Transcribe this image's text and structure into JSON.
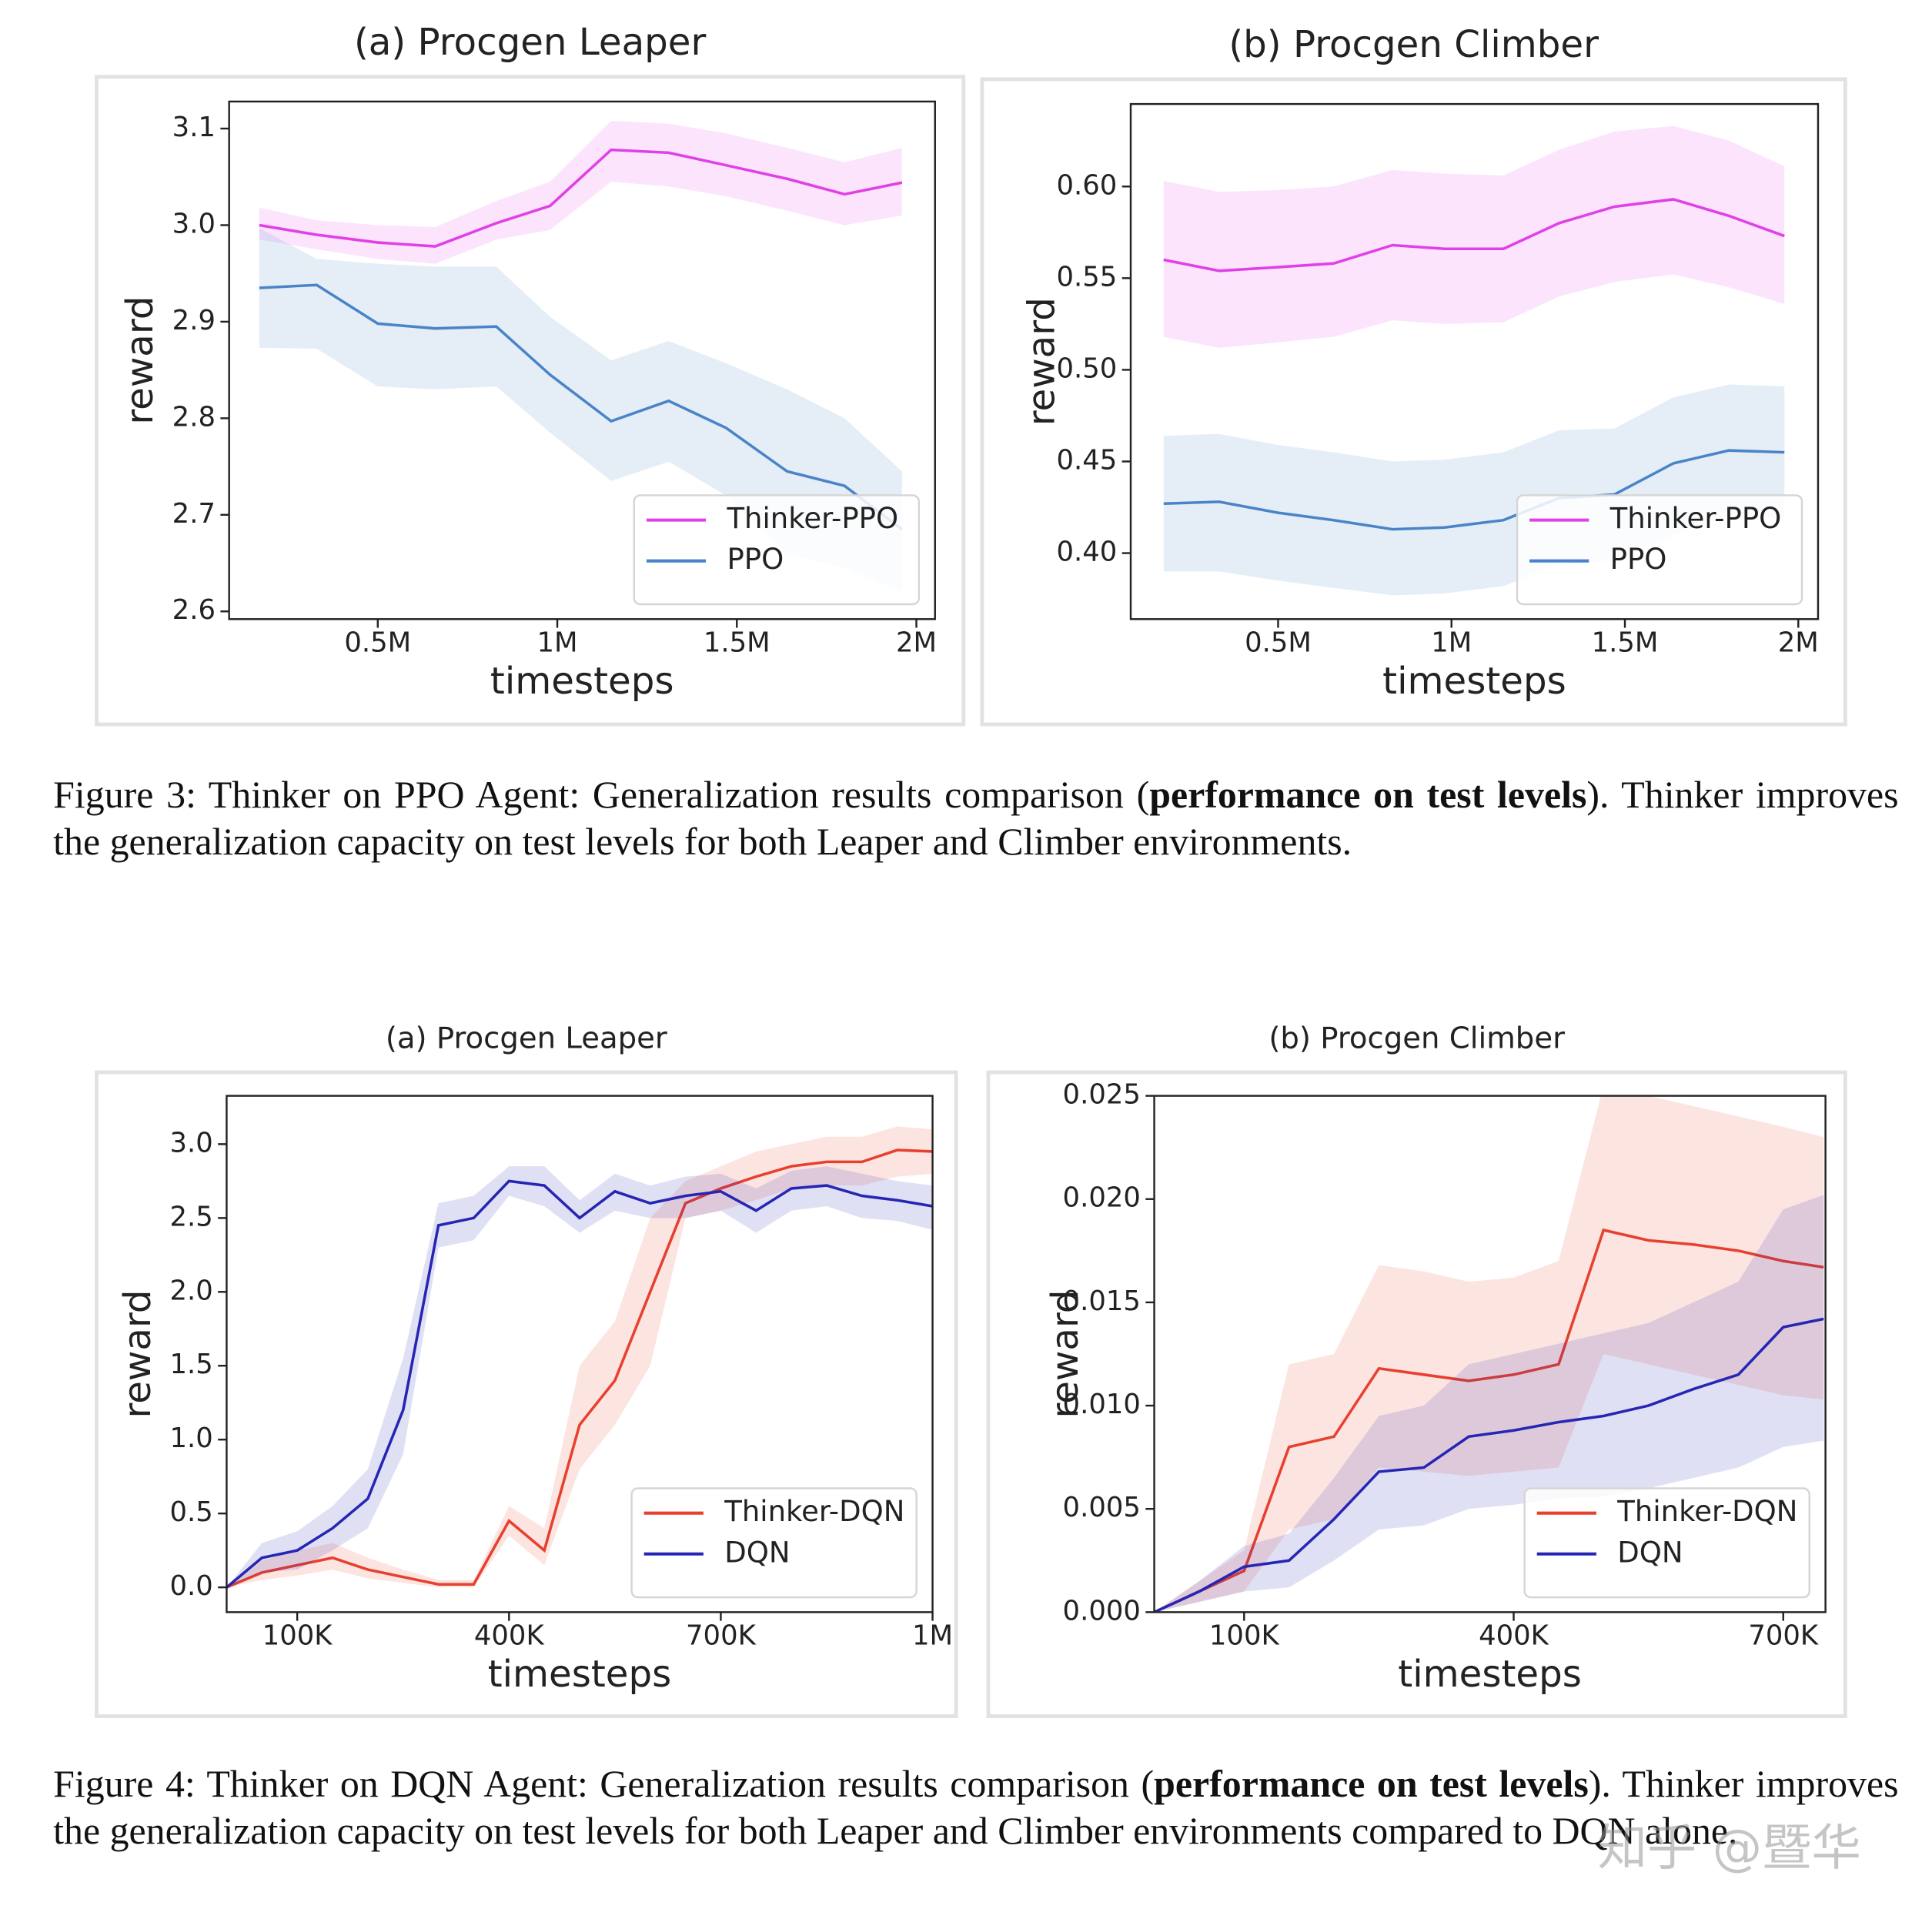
{
  "chart_data": [
    {
      "type": "line",
      "title": "(a) Procgen Leaper",
      "x_label": "timesteps",
      "y_label": "reward",
      "x": [
        170000,
        330000,
        500000,
        660000,
        830000,
        980000,
        1150000,
        1310000,
        1470000,
        1640000,
        1800000,
        1960000
      ],
      "xlim": [
        86000,
        2052000
      ],
      "xticks": [
        {
          "value": 500000,
          "label": "0.5M"
        },
        {
          "value": 1000000,
          "label": "1M"
        },
        {
          "value": 1500000,
          "label": "1.5M"
        },
        {
          "value": 2000000,
          "label": "2M"
        }
      ],
      "ylim": [
        2.592,
        3.128
      ],
      "yticks": [
        2.6,
        2.7,
        2.8,
        2.9,
        {
          "value": 3,
          "label": "3.0"
        },
        3.1
      ],
      "grid": false,
      "legend": "lower right",
      "series": [
        {
          "name": "Thinker-PPO",
          "color": "#e040e8",
          "values": [
            3.0,
            2.99,
            2.982,
            2.978,
            3.002,
            3.02,
            3.078,
            3.075,
            3.062,
            3.048,
            3.032,
            3.044
          ],
          "lower": [
            2.985,
            2.975,
            2.965,
            2.96,
            2.985,
            2.995,
            3.045,
            3.04,
            3.03,
            3.015,
            3.0,
            3.01
          ],
          "upper": [
            3.018,
            3.005,
            3.0,
            2.998,
            3.025,
            3.045,
            3.108,
            3.105,
            3.095,
            3.08,
            3.065,
            3.08
          ]
        },
        {
          "name": "PPO",
          "color": "#4a84c8",
          "values": [
            2.935,
            2.938,
            2.898,
            2.893,
            2.895,
            2.845,
            2.797,
            2.818,
            2.79,
            2.745,
            2.73,
            2.685
          ],
          "lower": [
            2.873,
            2.872,
            2.833,
            2.83,
            2.833,
            2.785,
            2.735,
            2.755,
            2.72,
            2.66,
            2.645,
            2.62
          ],
          "upper": [
            2.997,
            2.965,
            2.96,
            2.957,
            2.957,
            2.905,
            2.86,
            2.88,
            2.857,
            2.83,
            2.8,
            2.745
          ]
        }
      ]
    },
    {
      "type": "line",
      "title": "(b) Procgen Climber",
      "x_label": "timesteps",
      "y_label": "reward",
      "x": [
        170000,
        330000,
        500000,
        660000,
        830000,
        980000,
        1150000,
        1310000,
        1470000,
        1640000,
        1800000,
        1960000
      ],
      "xlim": [
        75000,
        2057000
      ],
      "xticks": [
        {
          "value": 500000,
          "label": "0.5M"
        },
        {
          "value": 1000000,
          "label": "1M"
        },
        {
          "value": 1500000,
          "label": "1.5M"
        },
        {
          "value": 2000000,
          "label": "2M"
        }
      ],
      "ylim": [
        0.364,
        0.645
      ],
      "yticks": [
        {
          "value": 0.4,
          "label": "0.40"
        },
        0.45,
        {
          "value": 0.5,
          "label": "0.50"
        },
        0.55,
        {
          "value": 0.6,
          "label": "0.60"
        }
      ],
      "grid": false,
      "legend": "lower right",
      "series": [
        {
          "name": "Thinker-PPO",
          "color": "#e040e8",
          "values": [
            0.56,
            0.554,
            0.556,
            0.558,
            0.568,
            0.566,
            0.566,
            0.58,
            0.589,
            0.593,
            0.584,
            0.573
          ],
          "lower": [
            0.518,
            0.512,
            0.515,
            0.518,
            0.527,
            0.525,
            0.526,
            0.54,
            0.548,
            0.552,
            0.545,
            0.536
          ],
          "upper": [
            0.603,
            0.597,
            0.598,
            0.6,
            0.609,
            0.607,
            0.606,
            0.62,
            0.63,
            0.633,
            0.625,
            0.611
          ]
        },
        {
          "name": "PPO",
          "color": "#4a84c8",
          "values": [
            0.427,
            0.428,
            0.422,
            0.418,
            0.413,
            0.414,
            0.418,
            0.43,
            0.432,
            0.449,
            0.456,
            0.455
          ],
          "lower": [
            0.39,
            0.39,
            0.385,
            0.381,
            0.377,
            0.378,
            0.382,
            0.394,
            0.396,
            0.41,
            0.42,
            0.419
          ],
          "upper": [
            0.464,
            0.465,
            0.459,
            0.455,
            0.45,
            0.451,
            0.455,
            0.467,
            0.468,
            0.485,
            0.492,
            0.491
          ]
        }
      ]
    },
    {
      "type": "line",
      "title": "(a) Procgen Leaper",
      "x_label": "timesteps",
      "y_label": "reward",
      "x": [
        0,
        50000,
        100000,
        150000,
        200000,
        250000,
        300000,
        350000,
        400000,
        450000,
        500000,
        550000,
        600000,
        650000,
        700000,
        750000,
        800000,
        850000,
        900000,
        950000,
        1000000
      ],
      "xlim": [
        0,
        1000000
      ],
      "xticks": [
        {
          "value": 100000,
          "label": "100K"
        },
        {
          "value": 400000,
          "label": "400K"
        },
        {
          "value": 700000,
          "label": "700K"
        },
        {
          "value": 1000000,
          "label": "1M"
        }
      ],
      "ylim": [
        -0.168,
        3.327
      ],
      "yticks": [
        {
          "value": 0,
          "label": "0.0"
        },
        0.5,
        {
          "value": 1,
          "label": "1.0"
        },
        1.5,
        {
          "value": 2,
          "label": "2.0"
        },
        2.5,
        {
          "value": 3,
          "label": "3.0"
        }
      ],
      "grid": false,
      "legend": "lower right",
      "series": [
        {
          "name": "Thinker-DQN",
          "color": "#e8402e",
          "values": [
            0,
            0.1,
            0.15,
            0.2,
            0.12,
            0.07,
            0.02,
            0.02,
            0.45,
            0.25,
            1.1,
            1.4,
            2.0,
            2.6,
            2.7,
            2.78,
            2.85,
            2.88,
            2.88,
            2.96,
            2.95
          ],
          "lower": [
            0,
            0.05,
            0.08,
            0.12,
            0.06,
            0.03,
            0,
            0,
            0.35,
            0.15,
            0.8,
            1.1,
            1.5,
            2.5,
            2.55,
            2.62,
            2.7,
            2.72,
            2.72,
            2.78,
            2.8
          ],
          "upper": [
            0,
            0.18,
            0.25,
            0.3,
            0.2,
            0.12,
            0.05,
            0.05,
            0.55,
            0.4,
            1.5,
            1.8,
            2.5,
            2.75,
            2.85,
            2.95,
            3.0,
            3.05,
            3.05,
            3.12,
            3.1
          ]
        },
        {
          "name": "DQN",
          "color": "#2626b4",
          "values": [
            0,
            0.2,
            0.25,
            0.4,
            0.6,
            1.2,
            2.45,
            2.5,
            2.75,
            2.72,
            2.5,
            2.68,
            2.6,
            2.65,
            2.68,
            2.55,
            2.7,
            2.72,
            2.65,
            2.62,
            2.58
          ],
          "lower": [
            0,
            0.1,
            0.12,
            0.25,
            0.4,
            0.9,
            2.3,
            2.35,
            2.65,
            2.58,
            2.4,
            2.55,
            2.5,
            2.5,
            2.55,
            2.4,
            2.55,
            2.58,
            2.5,
            2.48,
            2.42
          ],
          "upper": [
            0,
            0.3,
            0.38,
            0.55,
            0.8,
            1.55,
            2.6,
            2.65,
            2.85,
            2.85,
            2.62,
            2.8,
            2.72,
            2.78,
            2.8,
            2.7,
            2.82,
            2.85,
            2.8,
            2.75,
            2.72
          ]
        }
      ]
    },
    {
      "type": "line",
      "title": "(b) Procgen Climber",
      "x_label": "timesteps",
      "y_label": "reward",
      "x": [
        0,
        50000,
        100000,
        150000,
        200000,
        250000,
        300000,
        350000,
        400000,
        450000,
        500000,
        550000,
        600000,
        650000,
        700000,
        745000
      ],
      "xlim": [
        0,
        747000
      ],
      "xticks": [
        {
          "value": 100000,
          "label": "100K"
        },
        {
          "value": 400000,
          "label": "400K"
        },
        {
          "value": 700000,
          "label": "700K"
        }
      ],
      "ylim": [
        0,
        0.025
      ],
      "yticks": [
        {
          "value": 0,
          "label": "0.000"
        },
        0.005,
        {
          "value": 0.01,
          "label": "0.010"
        },
        0.015,
        {
          "value": 0.02,
          "label": "0.020"
        },
        0.025
      ],
      "grid": false,
      "legend": "lower right",
      "series": [
        {
          "name": "Thinker-DQN",
          "color": "#e8402e",
          "values": [
            0,
            0.001,
            0.002,
            0.008,
            0.0085,
            0.0118,
            0.0115,
            0.0112,
            0.0115,
            0.012,
            0.0185,
            0.018,
            0.0178,
            0.0175,
            0.017,
            0.0167
          ],
          "lower": [
            0,
            0.0005,
            0.001,
            0.004,
            0.0045,
            0.007,
            0.0068,
            0.0066,
            0.0068,
            0.007,
            0.0125,
            0.012,
            0.0115,
            0.011,
            0.0105,
            0.0103
          ],
          "upper": [
            0,
            0.0015,
            0.003,
            0.012,
            0.0125,
            0.0168,
            0.0165,
            0.016,
            0.0162,
            0.017,
            0.0255,
            0.025,
            0.0245,
            0.024,
            0.0235,
            0.023
          ]
        },
        {
          "name": "DQN",
          "color": "#2626b4",
          "values": [
            0,
            0.001,
            0.0022,
            0.0025,
            0.0045,
            0.0068,
            0.007,
            0.0085,
            0.0088,
            0.0092,
            0.0095,
            0.01,
            0.0108,
            0.0115,
            0.0138,
            0.0142
          ],
          "lower": [
            0,
            0.0005,
            0.001,
            0.0012,
            0.0025,
            0.004,
            0.0042,
            0.005,
            0.0052,
            0.0055,
            0.0056,
            0.006,
            0.0065,
            0.007,
            0.008,
            0.0083
          ],
          "upper": [
            0,
            0.0015,
            0.0032,
            0.0038,
            0.0065,
            0.0095,
            0.01,
            0.012,
            0.0125,
            0.013,
            0.0135,
            0.014,
            0.015,
            0.016,
            0.0195,
            0.0202
          ]
        }
      ]
    }
  ],
  "captions": [
    {
      "label": "Figure 3:",
      "before": "Thinker on PPO Agent: Generalization results comparison (",
      "bold": "performance on test levels",
      "after": "). Thinker improves the generalization capacity on test levels for both Leaper and Climber environments."
    },
    {
      "label": "Figure 4:",
      "before": "Thinker on DQN Agent: Generalization results comparison (",
      "bold": "performance on test levels",
      "after": "). Thinker improves the generalization capacity on test levels for both Leaper and Climber environments compared to DQN alone."
    }
  ],
  "watermark": "知乎 @暨华"
}
